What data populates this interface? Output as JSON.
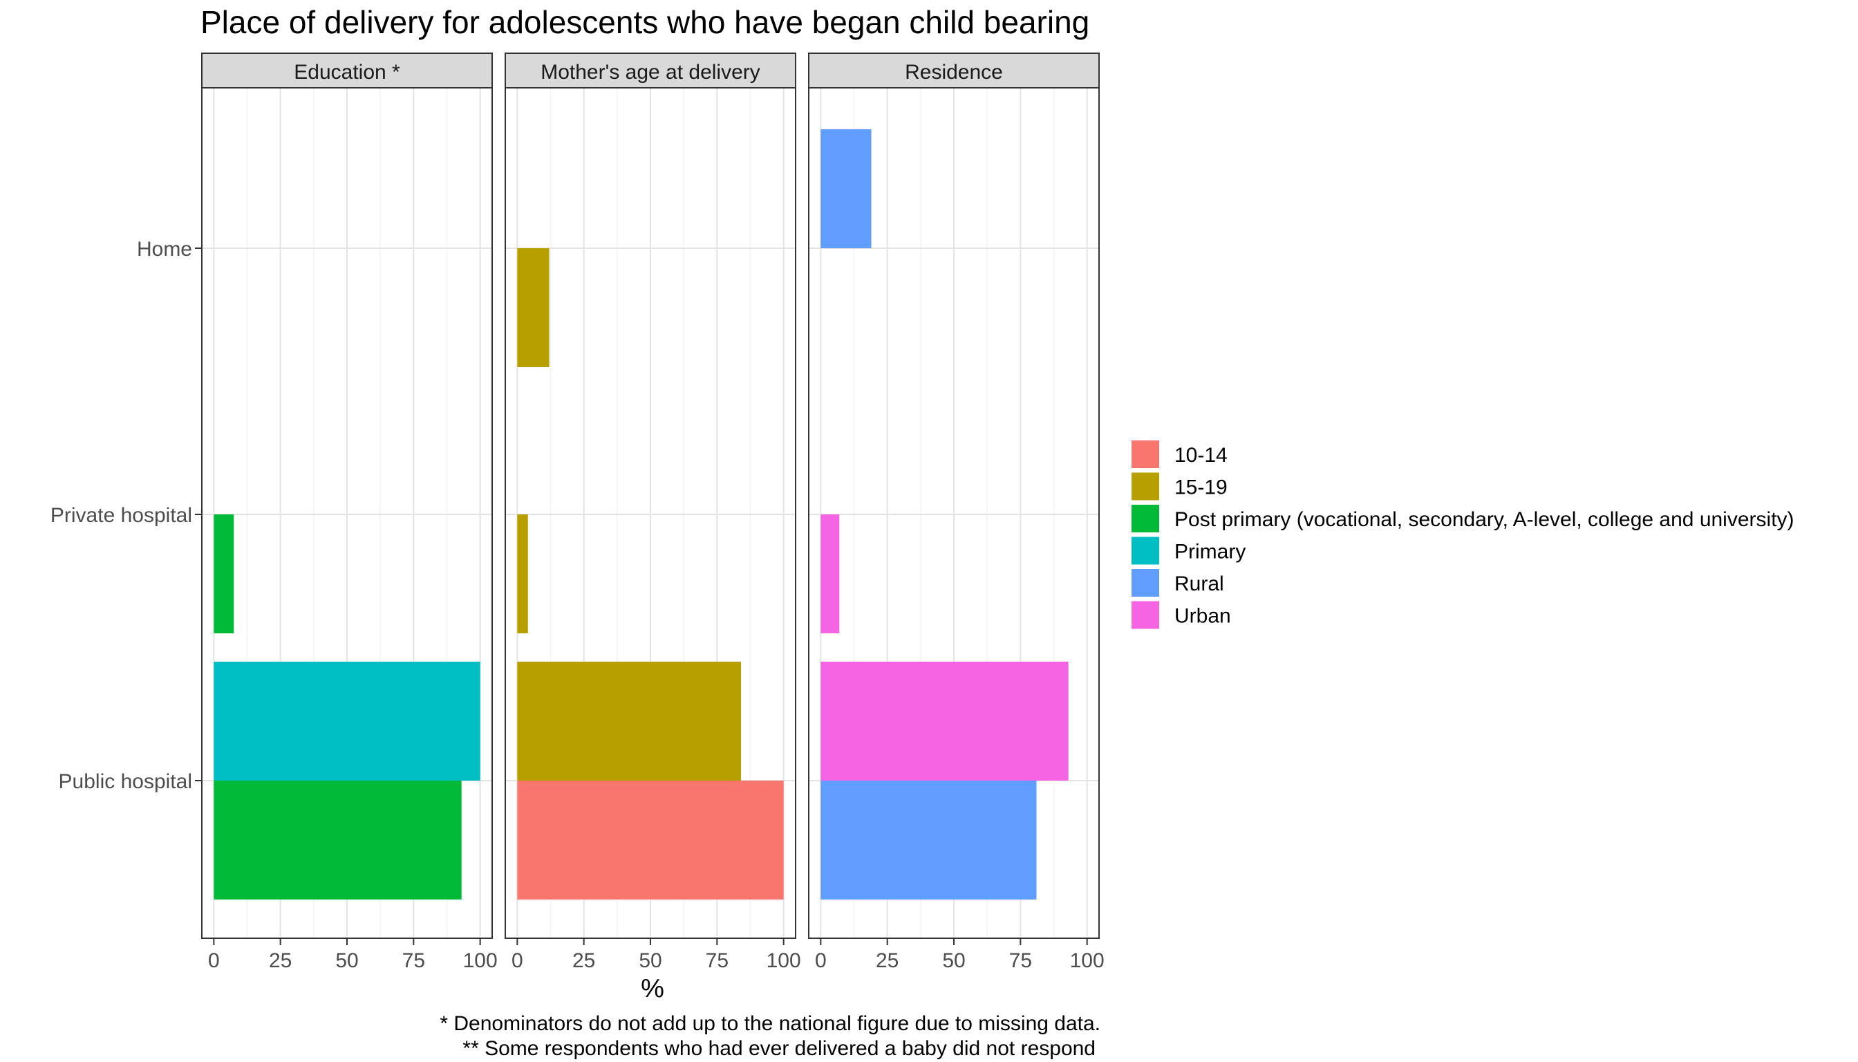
{
  "chart_data": {
    "type": "bar",
    "orientation": "horizontal",
    "title": "Place of delivery for adolescents who have began child bearing",
    "xlabel": "%",
    "ylabel": "",
    "xlim": [
      0,
      100
    ],
    "x_ticks": [
      "0",
      "25",
      "50",
      "75",
      "100"
    ],
    "categories": [
      "Home",
      "Private hospital",
      "Public hospital"
    ],
    "grid": true,
    "legend_position": "right",
    "legend": [
      {
        "label": "10-14",
        "color": "#F8766D"
      },
      {
        "label": "15-19",
        "color": "#B79F00"
      },
      {
        "label": "Post primary (vocational, secondary, A-level, college and university)",
        "color": "#00BA38"
      },
      {
        "label": "Primary",
        "color": "#00BFC4"
      },
      {
        "label": "Rural",
        "color": "#619CFF"
      },
      {
        "label": "Urban",
        "color": "#F564E3"
      }
    ],
    "facets": [
      {
        "label": "Education *",
        "bars": [
          {
            "category": "Private hospital",
            "group": "Post primary (vocational, secondary, A-level, college and university)",
            "value": 7.5
          },
          {
            "category": "Public hospital",
            "group": "Post primary (vocational, secondary, A-level, college and university)",
            "value": 93
          },
          {
            "category": "Public hospital",
            "group": "Primary",
            "value": 100
          }
        ]
      },
      {
        "label": "Mother's age at delivery",
        "bars": [
          {
            "category": "Home",
            "group": "15-19",
            "value": 12
          },
          {
            "category": "Private hospital",
            "group": "15-19",
            "value": 4
          },
          {
            "category": "Public hospital",
            "group": "10-14",
            "value": 100
          },
          {
            "category": "Public hospital",
            "group": "15-19",
            "value": 84
          }
        ]
      },
      {
        "label": "Residence",
        "bars": [
          {
            "category": "Home",
            "group": "Rural",
            "value": 19
          },
          {
            "category": "Private hospital",
            "group": "Urban",
            "value": 7
          },
          {
            "category": "Public hospital",
            "group": "Rural",
            "value": 81
          },
          {
            "category": "Public hospital",
            "group": "Urban",
            "value": 93
          }
        ]
      }
    ],
    "captions": [
      "* Denominators do not add up to the national figure due to missing data.",
      "**  Some respondents who had ever delivered a baby did not respond"
    ]
  }
}
